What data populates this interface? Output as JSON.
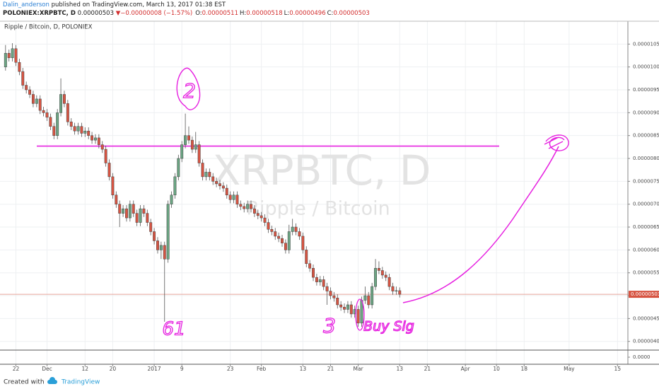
{
  "chart_data": {
    "type": "candlestick",
    "header": {
      "author": "Dalin_anderson",
      "published": "published on TradingView.com, March 13, 2017 01:38 EST",
      "symbol": "POLONIEX:XRPBTC, D",
      "price": "0.00000503",
      "arrow": "▼",
      "change": "−0.00000008 (−1.57%)",
      "ohlc": [
        {
          "label": "O:",
          "value": "0.00000511"
        },
        {
          "label": "H:",
          "value": "0.00000518"
        },
        {
          "label": "L:",
          "value": "0.00000496"
        },
        {
          "label": "C:",
          "value": "0.00000503"
        }
      ]
    },
    "legend": "Ripple / Bitcoin, D, POLONIEX",
    "watermark": "XRPBTC, D",
    "watermark_subtitle": "Ripple / Bitcoin",
    "up_color": "#6ba583",
    "down_color": "#d75442",
    "grid": true,
    "xlim": [
      -1.6,
      180
    ],
    "xticks": [
      {
        "value": 3,
        "label": "22"
      },
      {
        "value": 12,
        "label": "Dec"
      },
      {
        "value": 23,
        "label": "12"
      },
      {
        "value": 31,
        "label": "20"
      },
      {
        "value": 43,
        "label": "2017"
      },
      {
        "value": 51,
        "label": "9"
      },
      {
        "value": 65,
        "label": "23"
      },
      {
        "value": 74,
        "label": "Feb"
      },
      {
        "value": 86,
        "label": "13"
      },
      {
        "value": 94,
        "label": "21"
      },
      {
        "value": 102,
        "label": "Mar"
      },
      {
        "value": 114,
        "label": "13"
      },
      {
        "value": 122,
        "label": "21"
      },
      {
        "value": 133,
        "label": "Apr"
      },
      {
        "value": 142,
        "label": "10"
      },
      {
        "value": 150,
        "label": "18"
      },
      {
        "value": 163,
        "label": "May"
      },
      {
        "value": 177,
        "label": "15"
      }
    ],
    "ylim": [
      3.81e-06,
      1.1e-05
    ],
    "yticks": [
      {
        "value": 4e-06,
        "label": "0.00000400"
      },
      {
        "value": 4.5e-06,
        "label": "0.00000450"
      },
      {
        "value": 5e-06,
        "label": "0.00000500"
      },
      {
        "value": 5.5e-06,
        "label": "0.00000550"
      },
      {
        "value": 6e-06,
        "label": "0.00000600"
      },
      {
        "value": 6.5e-06,
        "label": "0.00000650"
      },
      {
        "value": 7e-06,
        "label": "0.00000700"
      },
      {
        "value": 7.5e-06,
        "label": "0.00000750"
      },
      {
        "value": 8e-06,
        "label": "0.00000800"
      },
      {
        "value": 8.5e-06,
        "label": "0.00000850"
      },
      {
        "value": 9e-06,
        "label": "0.00000900"
      },
      {
        "value": 9.5e-06,
        "label": "0.00000950"
      },
      {
        "value": 1e-05,
        "label": "0.00001000"
      },
      {
        "value": 1.05e-05,
        "label": "0.00001050"
      }
    ],
    "volume_yticks": [
      {
        "value": 0,
        "label": "0.0000"
      }
    ],
    "last_price": {
      "value": 5.03e-06,
      "label": "0.00000503"
    },
    "hline": 8.27e-06,
    "annotations": [
      "2",
      "61",
      "3",
      "Buy Sig"
    ],
    "footer": {
      "created": "Created with",
      "brand": "TradingView"
    },
    "ohlc": [
      [
        1e-05,
        1.048e-05,
        9.92e-06,
        1.03e-05
      ],
      [
        1.03e-05,
        1.038e-05,
        1.012e-05,
        1.02e-05
      ],
      [
        1.02e-05,
        1.052e-05,
        1.012e-05,
        1.04e-05
      ],
      [
        1.04e-05,
        1.048e-05,
        1.002e-05,
        1.01e-05
      ],
      [
        1.01e-05,
        1.018e-05,
        9.82e-06,
        9.9e-06
      ],
      [
        9.9e-06,
        9.98e-06,
        9.52e-06,
        9.6e-06
      ],
      [
        9.6e-06,
        9.68e-06,
        9.42e-06,
        9.5e-06
      ],
      [
        9.5e-06,
        9.58e-06,
        9.32e-06,
        9.4e-06
      ],
      [
        9.4e-06,
        9.48e-06,
        9.12e-06,
        9.2e-06
      ],
      [
        9.2e-06,
        9.38e-06,
        9.12e-06,
        9.3e-06
      ],
      [
        9.3e-06,
        9.38e-06,
        8.97e-06,
        9.05e-06
      ],
      [
        9.05e-06,
        9.13e-06,
        8.92e-06,
        9e-06
      ],
      [
        9e-06,
        9.08e-06,
        8.82e-06,
        8.9e-06
      ],
      [
        8.9e-06,
        8.98e-06,
        8.62e-06,
        8.7e-06
      ],
      [
        8.7e-06,
        8.78e-06,
        8.42e-06,
        8.5e-06
      ],
      [
        8.5e-06,
        9.08e-06,
        8.42e-06,
        9e-06
      ],
      [
        9e-06,
        9.75e-06,
        8.92e-06,
        9.4e-06
      ],
      [
        9.4e-06,
        9.48e-06,
        9.12e-06,
        9.2e-06
      ],
      [
        9.2e-06,
        9.28e-06,
        8.72e-06,
        8.8e-06
      ],
      [
        8.8e-06,
        8.88e-06,
        8.62e-06,
        8.7e-06
      ],
      [
        8.7e-06,
        8.78e-06,
        8.52e-06,
        8.6e-06
      ],
      [
        8.6e-06,
        8.78e-06,
        8.52e-06,
        8.7e-06
      ],
      [
        8.7e-06,
        8.78e-06,
        8.47e-06,
        8.55e-06
      ],
      [
        8.55e-06,
        8.68e-06,
        8.47e-06,
        8.6e-06
      ],
      [
        8.6e-06,
        8.68e-06,
        8.42e-06,
        8.5e-06
      ],
      [
        8.5e-06,
        8.58e-06,
        8.32e-06,
        8.4e-06
      ],
      [
        8.4e-06,
        8.53e-06,
        8.32e-06,
        8.45e-06
      ],
      [
        8.45e-06,
        8.53e-06,
        8.22e-06,
        8.3e-06
      ],
      [
        8.3e-06,
        8.38e-06,
        8.12e-06,
        8.2e-06
      ],
      [
        8.2e-06,
        8.28e-06,
        7.82e-06,
        7.9e-06
      ],
      [
        7.9e-06,
        7.98e-06,
        7.52e-06,
        7.6e-06
      ],
      [
        7.6e-06,
        7.68e-06,
        7.12e-06,
        7.2e-06
      ],
      [
        7.2e-06,
        7.28e-06,
        6.92e-06,
        7e-06
      ],
      [
        7e-06,
        7.08e-06,
        6.5e-06,
        6.8e-06
      ],
      [
        6.8e-06,
        6.98e-06,
        6.72e-06,
        6.9e-06
      ],
      [
        6.9e-06,
        6.98e-06,
        6.62e-06,
        6.7e-06
      ],
      [
        6.7e-06,
        7.08e-06,
        6.62e-06,
        7e-06
      ],
      [
        7e-06,
        7.08e-06,
        6.72e-06,
        6.8e-06
      ],
      [
        6.8e-06,
        6.88e-06,
        6.52e-06,
        6.6e-06
      ],
      [
        6.6e-06,
        6.98e-06,
        6.52e-06,
        6.9e-06
      ],
      [
        6.9e-06,
        6.98e-06,
        6.72e-06,
        6.8e-06
      ],
      [
        6.8e-06,
        6.88e-06,
        6.52e-06,
        6.6e-06
      ],
      [
        6.6e-06,
        6.68e-06,
        6.32e-06,
        6.4e-06
      ],
      [
        6.4e-06,
        6.48e-06,
        6.12e-06,
        6.2e-06
      ],
      [
        6.2e-06,
        6.28e-06,
        5.92e-06,
        6e-06
      ],
      [
        6e-06,
        6.18e-06,
        5.8e-06,
        6.1e-06
      ],
      [
        6.1e-06,
        6.18e-06,
        4.43e-06,
        5.8e-06
      ],
      [
        5.8e-06,
        7.08e-06,
        5.72e-06,
        7e-06
      ],
      [
        7e-06,
        7.28e-06,
        6.92e-06,
        7.2e-06
      ],
      [
        7.2e-06,
        7.68e-06,
        7.12e-06,
        7.6e-06
      ],
      [
        7.6e-06,
        8.08e-06,
        7.52e-06,
        8e-06
      ],
      [
        8e-06,
        8.38e-06,
        7.92e-06,
        8.3e-06
      ],
      [
        8.3e-06,
        8.98e-06,
        8.22e-06,
        8.5e-06
      ],
      [
        8.5e-06,
        8.7e-06,
        8.32e-06,
        8.4e-06
      ],
      [
        8.4e-06,
        8.48e-06,
        8.12e-06,
        8.2e-06
      ],
      [
        8.2e-06,
        8.58e-06,
        8.12e-06,
        8.3e-06
      ],
      [
        8.3e-06,
        8.38e-06,
        7.82e-06,
        7.9e-06
      ],
      [
        7.9e-06,
        7.98e-06,
        7.52e-06,
        7.6e-06
      ],
      [
        7.6e-06,
        7.78e-06,
        7.52e-06,
        7.7e-06
      ],
      [
        7.7e-06,
        7.78e-06,
        7.52e-06,
        7.6e-06
      ],
      [
        7.6e-06,
        7.68e-06,
        7.42e-06,
        7.5e-06
      ],
      [
        7.5e-06,
        7.58e-06,
        7.37e-06,
        7.45e-06
      ],
      [
        7.45e-06,
        7.53e-06,
        7.32e-06,
        7.4e-06
      ],
      [
        7.4e-06,
        7.48e-06,
        7.27e-06,
        7.35e-06
      ],
      [
        7.35e-06,
        7.43e-06,
        7.12e-06,
        7.2e-06
      ],
      [
        7.2e-06,
        7.28e-06,
        7.02e-06,
        7.1e-06
      ],
      [
        7.1e-06,
        7.28e-06,
        7.02e-06,
        7.2e-06
      ],
      [
        7.2e-06,
        7.28e-06,
        6.92e-06,
        7e-06
      ],
      [
        7e-06,
        7.08e-06,
        6.87e-06,
        6.95e-06
      ],
      [
        6.95e-06,
        7.03e-06,
        6.82e-06,
        6.9e-06
      ],
      [
        6.9e-06,
        7.08e-06,
        6.82e-06,
        7e-06
      ],
      [
        7e-06,
        7.08e-06,
        6.82e-06,
        6.9e-06
      ],
      [
        6.9e-06,
        6.98e-06,
        6.72e-06,
        6.8e-06
      ],
      [
        6.8e-06,
        6.88e-06,
        6.67e-06,
        6.75e-06
      ],
      [
        6.75e-06,
        6.83e-06,
        6.62e-06,
        6.7e-06
      ],
      [
        6.7e-06,
        6.78e-06,
        6.52e-06,
        6.6e-06
      ],
      [
        6.6e-06,
        6.68e-06,
        6.37e-06,
        6.45e-06
      ],
      [
        6.45e-06,
        6.53e-06,
        6.32e-06,
        6.4e-06
      ],
      [
        6.4e-06,
        6.48e-06,
        6.22e-06,
        6.3e-06
      ],
      [
        6.3e-06,
        6.38e-06,
        6.17e-06,
        6.25e-06
      ],
      [
        6.25e-06,
        6.33e-06,
        6.07e-06,
        6.15e-06
      ],
      [
        6.15e-06,
        6.23e-06,
        5.92e-06,
        6e-06
      ],
      [
        6e-06,
        6.55e-06,
        5.92e-06,
        6.4e-06
      ],
      [
        6.4e-06,
        6.68e-06,
        6.32e-06,
        6.5e-06
      ],
      [
        6.5e-06,
        6.58e-06,
        6.32e-06,
        6.4e-06
      ],
      [
        6.4e-06,
        6.48e-06,
        6.22e-06,
        6.3e-06
      ],
      [
        6.3e-06,
        6.38e-06,
        5.92e-06,
        6e-06
      ],
      [
        6e-06,
        6.08e-06,
        5.62e-06,
        5.7e-06
      ],
      [
        5.7e-06,
        5.78e-06,
        5.52e-06,
        5.6e-06
      ],
      [
        5.6e-06,
        5.68e-06,
        5.32e-06,
        5.4e-06
      ],
      [
        5.4e-06,
        5.48e-06,
        5.22e-06,
        5.3e-06
      ],
      [
        5.3e-06,
        5.43e-06,
        5.22e-06,
        5.35e-06
      ],
      [
        5.35e-06,
        5.43e-06,
        5.12e-06,
        5.2e-06
      ],
      [
        5.2e-06,
        5.28e-06,
        4.8e-06,
        5.1e-06
      ],
      [
        5.1e-06,
        5.18e-06,
        4.92e-06,
        5e-06
      ],
      [
        5e-06,
        5.08e-06,
        4.87e-06,
        4.95e-06
      ],
      [
        4.95e-06,
        5.03e-06,
        4.72e-06,
        4.8e-06
      ],
      [
        4.8e-06,
        4.88e-06,
        4.67e-06,
        4.75e-06
      ],
      [
        4.75e-06,
        4.83e-06,
        4.62e-06,
        4.7e-06
      ],
      [
        4.7e-06,
        4.88e-06,
        4.62e-06,
        4.8e-06
      ],
      [
        4.8e-06,
        4.88e-06,
        4.52e-06,
        4.6e-06
      ],
      [
        4.6e-06,
        4.78e-06,
        4.52e-06,
        4.7e-06
      ],
      [
        4.7e-06,
        4.78e-06,
        4.32e-06,
        4.4e-06
      ],
      [
        4.4e-06,
        4.98e-06,
        4.32e-06,
        4.9e-06
      ],
      [
        4.9e-06,
        5.2e-06,
        4.82e-06,
        5e-06
      ],
      [
        5e-06,
        5.08e-06,
        4.72e-06,
        4.8e-06
      ],
      [
        4.8e-06,
        5.28e-06,
        4.72e-06,
        5.2e-06
      ],
      [
        5.2e-06,
        5.8e-06,
        5.12e-06,
        5.6e-06
      ],
      [
        5.6e-06,
        5.75e-06,
        5.47e-06,
        5.55e-06
      ],
      [
        5.55e-06,
        5.63e-06,
        5.37e-06,
        5.45e-06
      ],
      [
        5.45e-06,
        5.53e-06,
        5.32e-06,
        5.4e-06
      ],
      [
        5.4e-06,
        5.48e-06,
        5.12e-06,
        5.2e-06
      ],
      [
        5.2e-06,
        5.28e-06,
        5.02e-06,
        5.1e-06
      ],
      [
        5.1e-06,
        5.2e-06,
        5.02e-06,
        5.11e-06
      ],
      [
        5.11e-06,
        5.18e-06,
        4.96e-06,
        5.03e-06
      ]
    ]
  }
}
